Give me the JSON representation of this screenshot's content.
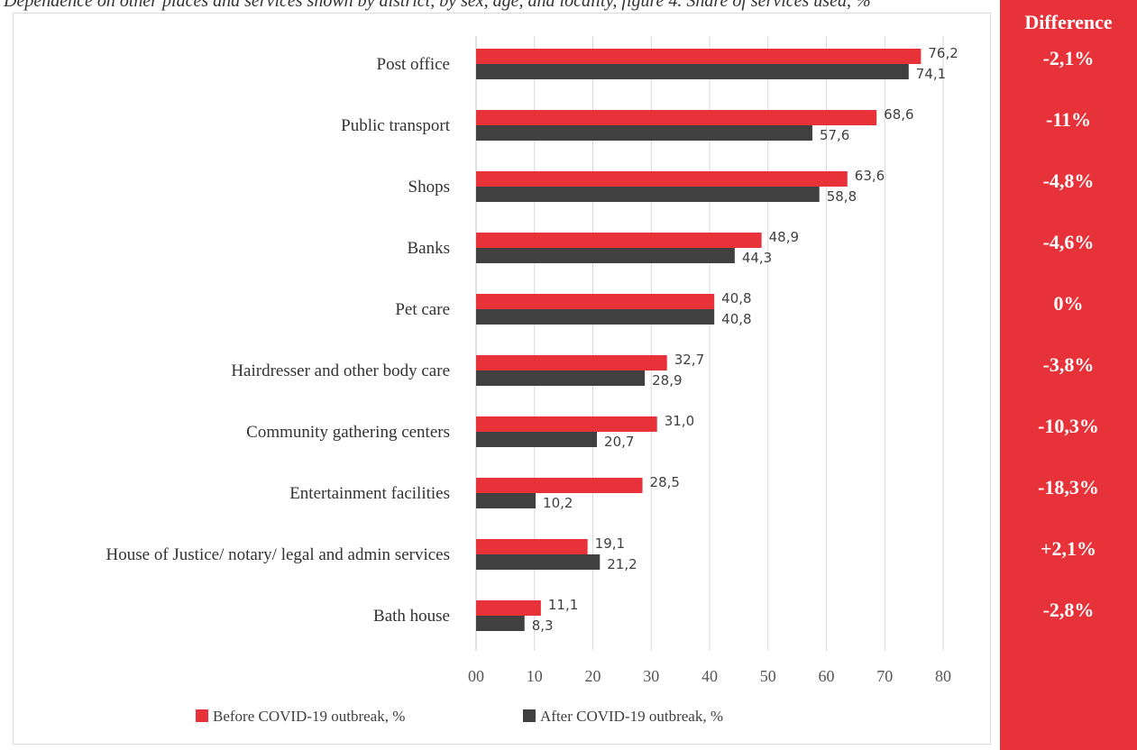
{
  "header_fragment": "Dependence on other places and services shown by district, by sex, age, and locality, figure 4. Share of services used, %",
  "chart_data": {
    "type": "bar",
    "orientation": "horizontal",
    "categories": [
      "Post office",
      "Public transport",
      "Shops",
      "Banks",
      "Pet care",
      "Hairdresser and other body care",
      "Community gathering centers",
      "Entertainment facilities",
      "House of Justice/ notary/ legal and admin services",
      "Bath house"
    ],
    "series": [
      {
        "name": "Before COVID-19 outbreak, %",
        "color": "#e8323a",
        "values": [
          76.2,
          68.6,
          63.6,
          48.9,
          40.8,
          32.7,
          31.0,
          28.5,
          19.1,
          11.1
        ],
        "labels": [
          "76,2",
          "68,6",
          "63,6",
          "48,9",
          "40,8",
          "32,7",
          "31,0",
          "28,5",
          "19,1",
          "11,1"
        ]
      },
      {
        "name": "After COVID-19 outbreak, %",
        "color": "#404040",
        "values": [
          74.1,
          57.6,
          58.8,
          44.3,
          40.8,
          28.9,
          20.7,
          10.2,
          21.2,
          8.3
        ],
        "labels": [
          "74,1",
          "57,6",
          "58,8",
          "44,3",
          "40,8",
          "28,9",
          "20,7",
          "10,2",
          "21,2",
          "8,3"
        ]
      }
    ],
    "xlim": [
      0,
      80
    ],
    "xticks": [
      "00",
      "10",
      "20",
      "30",
      "40",
      "50",
      "60",
      "70",
      "80"
    ],
    "grid": true,
    "legend": "bottom"
  },
  "difference": {
    "header": "Difference",
    "values": [
      "-2,1%",
      "-11%",
      "-4,8%",
      "-4,6%",
      "0%",
      "-3,8%",
      "-10,3%",
      "-18,3%",
      "+2,1%",
      "-2,8%"
    ]
  },
  "colors": {
    "accent_red": "#e8323a",
    "dark_gray": "#404040",
    "grid": "#d9d9d9"
  }
}
